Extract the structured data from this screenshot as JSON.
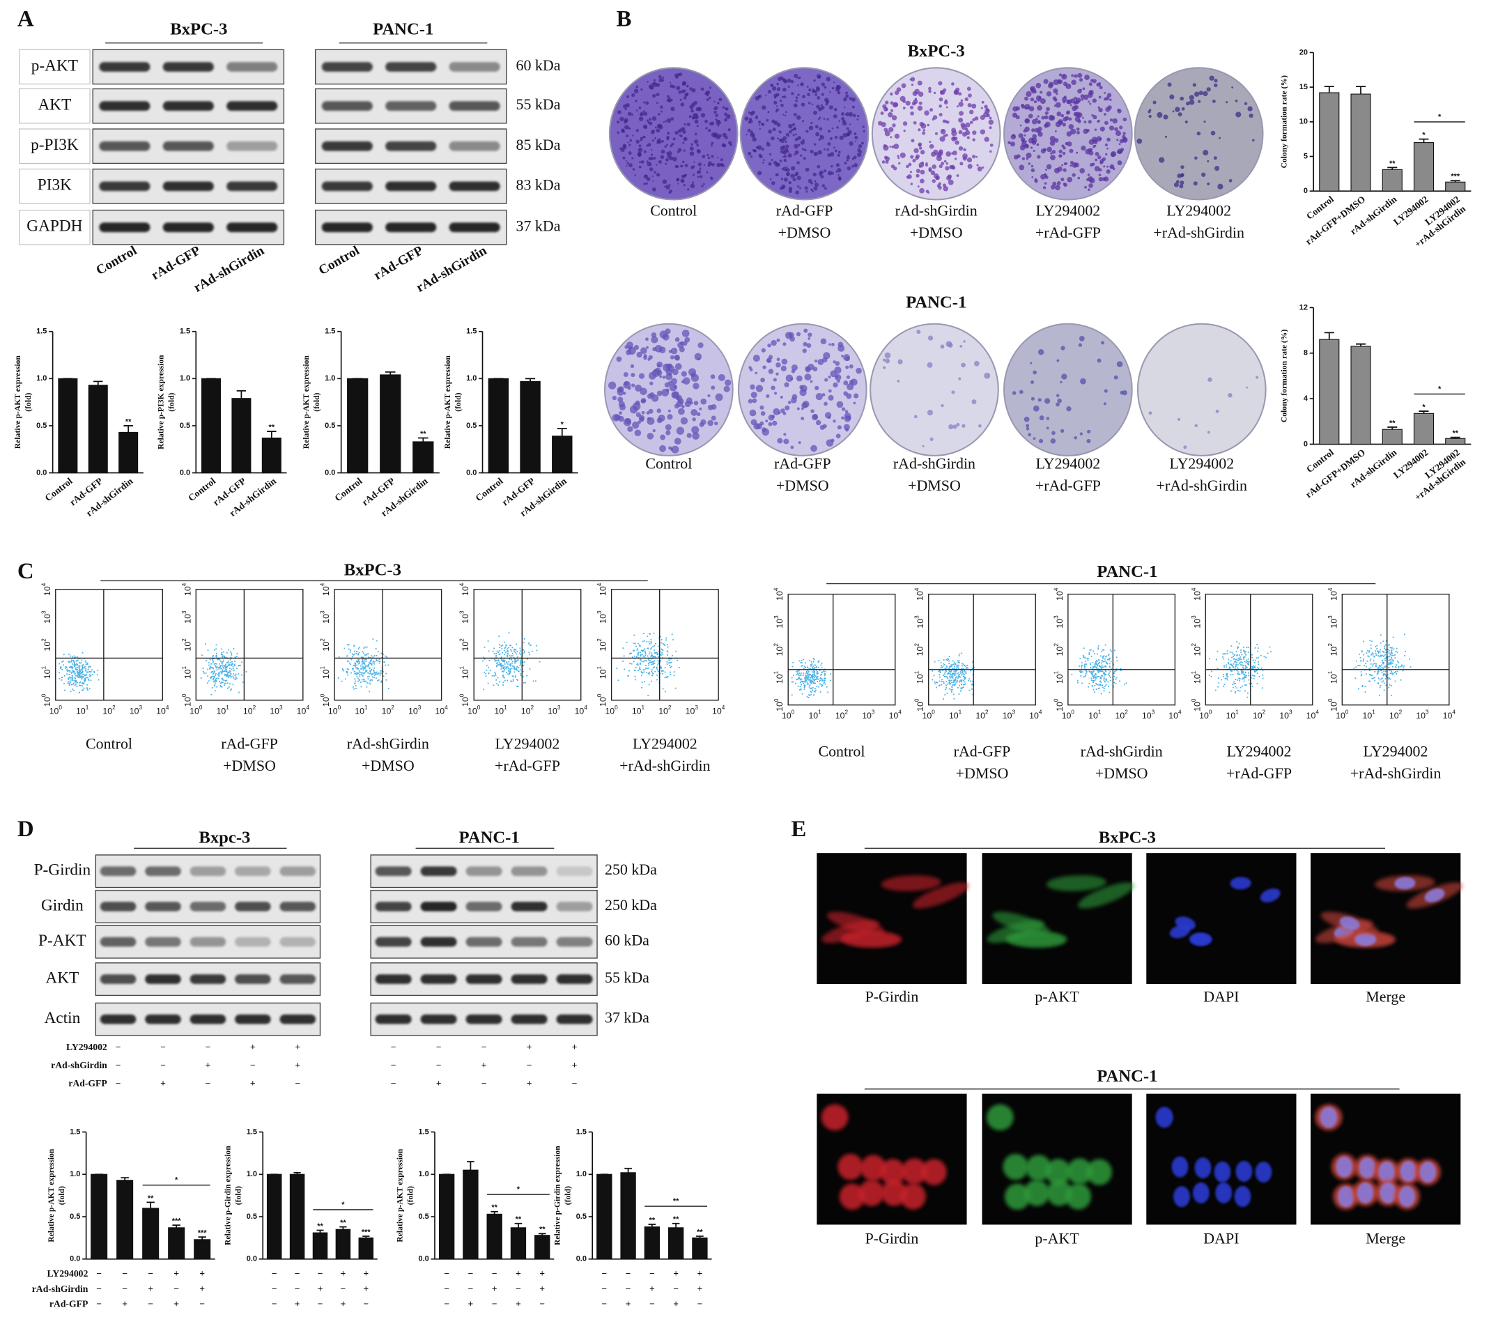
{
  "panel_labels": [
    "A",
    "B",
    "C",
    "D",
    "E"
  ],
  "western_a": {
    "groups": [
      {
        "cell_line": "BxPC-3"
      },
      {
        "cell_line": "PANC-1"
      }
    ],
    "proteins": [
      "p-AKT",
      "AKT",
      "p-PI3K",
      "PI3K",
      "GAPDH"
    ],
    "weights": [
      "60 kDa",
      "55 kDa",
      "85 kDa",
      "83 kDa",
      "37 kDa"
    ],
    "lanes": [
      "Control",
      "rAd-GFP",
      "rAd-shGirdin"
    ]
  },
  "colony": {
    "groups": [
      {
        "cell_line": "BxPC-3",
        "conditions": [
          [
            "Control"
          ],
          [
            "rAd-GFP",
            "+DMSO"
          ],
          [
            "rAd-shGirdin",
            "+DMSO"
          ],
          [
            "LY294002",
            "+rAd-GFP"
          ],
          [
            "LY294002",
            "+rAd-shGirdin"
          ]
        ]
      },
      {
        "cell_line": "PANC-1",
        "conditions": [
          [
            "Control"
          ],
          [
            "rAd-GFP",
            "+DMSO"
          ],
          [
            "rAd-shGirdin",
            "+DMSO"
          ],
          [
            "LY294002",
            "+rAd-GFP"
          ],
          [
            "LY294002",
            "+rAd-shGirdin"
          ]
        ]
      }
    ]
  },
  "flow": {
    "axis_ticks": [
      {
        "base": "10",
        "exp": "0"
      },
      {
        "base": "10",
        "exp": "1"
      },
      {
        "base": "10",
        "exp": "2"
      },
      {
        "base": "10",
        "exp": "3"
      },
      {
        "base": "10",
        "exp": "4"
      }
    ],
    "groups": [
      {
        "cell_line": "BxPC-3",
        "conditions": [
          [
            "Control"
          ],
          [
            "rAd-GFP",
            "+DMSO"
          ],
          [
            "rAd-shGirdin",
            "+DMSO"
          ],
          [
            "LY294002",
            "+rAd-GFP"
          ],
          [
            "LY294002",
            "+rAd-shGirdin"
          ]
        ]
      },
      {
        "cell_line": "PANC-1",
        "conditions": [
          [
            "Control"
          ],
          [
            "rAd-GFP",
            "+DMSO"
          ],
          [
            "rAd-shGirdin",
            "+DMSO"
          ],
          [
            "LY294002",
            "+rAd-GFP"
          ],
          [
            "LY294002",
            "+rAd-shGirdin"
          ]
        ]
      }
    ]
  },
  "western_d": {
    "groups": [
      {
        "cell_line": "Bxpc-3"
      },
      {
        "cell_line": "PANC-1"
      }
    ],
    "proteins": [
      "P-Girdin",
      "Girdin",
      "P-AKT",
      "AKT",
      "Actin"
    ],
    "weights": [
      "250 kDa",
      "250 kDa",
      "60 kDa",
      "55 kDa",
      "37 kDa"
    ]
  },
  "treatment_table": {
    "rows": [
      {
        "label": "LY294002",
        "signs": [
          "−",
          "−",
          "−",
          "+",
          "+"
        ]
      },
      {
        "label": "rAd-shGirdin",
        "signs": [
          "−",
          "−",
          "+",
          "−",
          "+"
        ]
      },
      {
        "label": "rAd-GFP",
        "signs": [
          "−",
          "+",
          "−",
          "+",
          "−"
        ]
      }
    ]
  },
  "immunofluorescence": {
    "groups": [
      {
        "cell_line": "BxPC-3"
      },
      {
        "cell_line": "PANC-1"
      }
    ],
    "channels": [
      "P-Girdin",
      "p-AKT",
      "DAPI",
      "Merge"
    ]
  },
  "chart_data": [
    {
      "type": "bar",
      "ylabel": [
        "Relative p-AKT expression",
        "(fold)"
      ],
      "categories": [
        "Control",
        "rAd-GFP",
        "rAd-shGirdin"
      ],
      "values": [
        1.0,
        0.93,
        0.43
      ],
      "errors": [
        0,
        0.04,
        0.07
      ],
      "color": "#111111",
      "ylim": [
        0,
        1.5
      ],
      "yticks": [
        {
          "value": 0,
          "label": "0.0"
        },
        0.5,
        {
          "value": 1,
          "label": "1.0"
        },
        1.5
      ],
      "significance": [
        {
          "index": 2,
          "label": "**"
        }
      ]
    },
    {
      "type": "bar",
      "ylabel": [
        "Relative p-PI3K expression",
        "(fold)"
      ],
      "categories": [
        "Control",
        "rAd-GFP",
        "rAd-shGirdin"
      ],
      "values": [
        1.0,
        0.79,
        0.37
      ],
      "errors": [
        0,
        0.08,
        0.07
      ],
      "color": "#111111",
      "ylim": [
        0,
        1.5
      ],
      "yticks": [
        {
          "value": 0,
          "label": "0.0"
        },
        0.5,
        {
          "value": 1,
          "label": "1.0"
        },
        1.5
      ],
      "significance": [
        {
          "index": 2,
          "label": "**"
        }
      ]
    },
    {
      "type": "bar",
      "ylabel": [
        "Relative p-AKT expression",
        "(fold)"
      ],
      "categories": [
        "Control",
        "rAd-GFP",
        "rAd-shGirdin"
      ],
      "values": [
        1.0,
        1.04,
        0.33
      ],
      "errors": [
        0,
        0.03,
        0.04
      ],
      "color": "#111111",
      "ylim": [
        0,
        1.5
      ],
      "yticks": [
        {
          "value": 0,
          "label": "0.0"
        },
        0.5,
        {
          "value": 1,
          "label": "1.0"
        },
        1.5
      ],
      "significance": [
        {
          "index": 2,
          "label": "**"
        }
      ]
    },
    {
      "type": "bar",
      "ylabel": [
        "Relative p-AKT expression",
        "(fold)"
      ],
      "categories": [
        "Control",
        "rAd-GFP",
        "rAd-shGirdin"
      ],
      "values": [
        1.0,
        0.97,
        0.39
      ],
      "errors": [
        0,
        0.03,
        0.08
      ],
      "color": "#111111",
      "ylim": [
        0,
        1.5
      ],
      "yticks": [
        {
          "value": 0,
          "label": "0.0"
        },
        0.5,
        {
          "value": 1,
          "label": "1.0"
        },
        1.5
      ],
      "significance": [
        {
          "index": 2,
          "label": "*"
        }
      ]
    },
    {
      "type": "bar",
      "ylabel": [
        "Colony formation rate (%)"
      ],
      "categories": [
        "Control",
        "rAd-GFP+DMSO",
        "rAd-shGirdin",
        "LY294002",
        [
          "LY294002",
          "+rAd-shGirdin"
        ]
      ],
      "values": [
        14.2,
        14.0,
        3.1,
        7.0,
        1.3
      ],
      "errors": [
        0.9,
        1.1,
        0.3,
        0.5,
        0.2
      ],
      "color": "#8a8a8a",
      "ylim": [
        0,
        20
      ],
      "yticks": [
        0,
        5,
        10,
        15,
        20
      ],
      "significance": [
        {
          "index": 2,
          "label": "**"
        },
        {
          "index": 3,
          "label": "*"
        },
        {
          "index": 4,
          "label": "***"
        }
      ],
      "brackets": [
        {
          "from": 3,
          "to": 4,
          "label": "*"
        }
      ]
    },
    {
      "type": "bar",
      "ylabel": [
        "Colony formation rate (%)"
      ],
      "categories": [
        "Control",
        "rAd-GFP+DMSO",
        "rAd-shGirdin",
        "LY294002",
        [
          "LY294002",
          "+rAd-shGirdin"
        ]
      ],
      "values": [
        9.2,
        8.6,
        1.3,
        2.7,
        0.5
      ],
      "errors": [
        0.6,
        0.2,
        0.2,
        0.2,
        0.1
      ],
      "color": "#8a8a8a",
      "ylim": [
        0,
        12
      ],
      "yticks": [
        0,
        4,
        8,
        12
      ],
      "significance": [
        {
          "index": 2,
          "label": "**"
        },
        {
          "index": 3,
          "label": "*"
        },
        {
          "index": 4,
          "label": "**"
        }
      ],
      "brackets": [
        {
          "from": 3,
          "to": 4,
          "label": "*"
        }
      ]
    },
    {
      "type": "bar",
      "ylabel": [
        "Relative p-AKT expression",
        "(fold)"
      ],
      "values": [
        1.0,
        0.93,
        0.6,
        0.37,
        0.23
      ],
      "errors": [
        0,
        0.03,
        0.07,
        0.03,
        0.03
      ],
      "color": "#111111",
      "ylim": [
        0,
        1.5
      ],
      "yticks": [
        {
          "value": 0,
          "label": "0.0"
        },
        0.5,
        {
          "value": 1,
          "label": "1.0"
        },
        1.5
      ],
      "significance": [
        {
          "index": 2,
          "label": "**"
        },
        {
          "index": 3,
          "label": "***"
        },
        {
          "index": 4,
          "label": "***"
        }
      ],
      "brackets": [
        {
          "from": 2,
          "to": 4,
          "label": "*"
        }
      ]
    },
    {
      "type": "bar",
      "ylabel": [
        "Relative p-Girdin expression",
        "(fold)"
      ],
      "values": [
        1.0,
        1.0,
        0.31,
        0.35,
        0.25
      ],
      "errors": [
        0,
        0.02,
        0.03,
        0.03,
        0.02
      ],
      "color": "#111111",
      "ylim": [
        0,
        1.5
      ],
      "yticks": [
        {
          "value": 0,
          "label": "0.0"
        },
        0.5,
        {
          "value": 1,
          "label": "1.0"
        },
        1.5
      ],
      "significance": [
        {
          "index": 2,
          "label": "**"
        },
        {
          "index": 3,
          "label": "**"
        },
        {
          "index": 4,
          "label": "***"
        }
      ],
      "brackets": [
        {
          "from": 2,
          "to": 4,
          "label": "*"
        }
      ]
    },
    {
      "type": "bar",
      "ylabel": [
        "Relative p-AKT expression",
        "(fold)"
      ],
      "values": [
        1.0,
        1.05,
        0.53,
        0.37,
        0.28
      ],
      "errors": [
        0,
        0.1,
        0.03,
        0.05,
        0.02
      ],
      "color": "#111111",
      "ylim": [
        0,
        1.5
      ],
      "yticks": [
        {
          "value": 0,
          "label": "0.0"
        },
        0.5,
        {
          "value": 1,
          "label": "1.0"
        },
        1.5
      ],
      "significance": [
        {
          "index": 2,
          "label": "**"
        },
        {
          "index": 3,
          "label": "**"
        },
        {
          "index": 4,
          "label": "**"
        }
      ],
      "brackets": [
        {
          "from": 2,
          "to": 4,
          "label": "*"
        }
      ]
    },
    {
      "type": "bar",
      "ylabel": [
        "Relative p-Girdin expression",
        "(fold)"
      ],
      "values": [
        1.0,
        1.02,
        0.38,
        0.37,
        0.25
      ],
      "errors": [
        0,
        0.05,
        0.03,
        0.05,
        0.02
      ],
      "color": "#111111",
      "ylim": [
        0,
        1.5
      ],
      "yticks": [
        {
          "value": 0,
          "label": "0.0"
        },
        0.5,
        {
          "value": 1,
          "label": "1.0"
        },
        1.5
      ],
      "significance": [
        {
          "index": 2,
          "label": "**"
        },
        {
          "index": 3,
          "label": "**"
        },
        {
          "index": 4,
          "label": "**"
        }
      ],
      "brackets": [
        {
          "from": 2,
          "to": 4,
          "label": "**"
        }
      ]
    }
  ]
}
